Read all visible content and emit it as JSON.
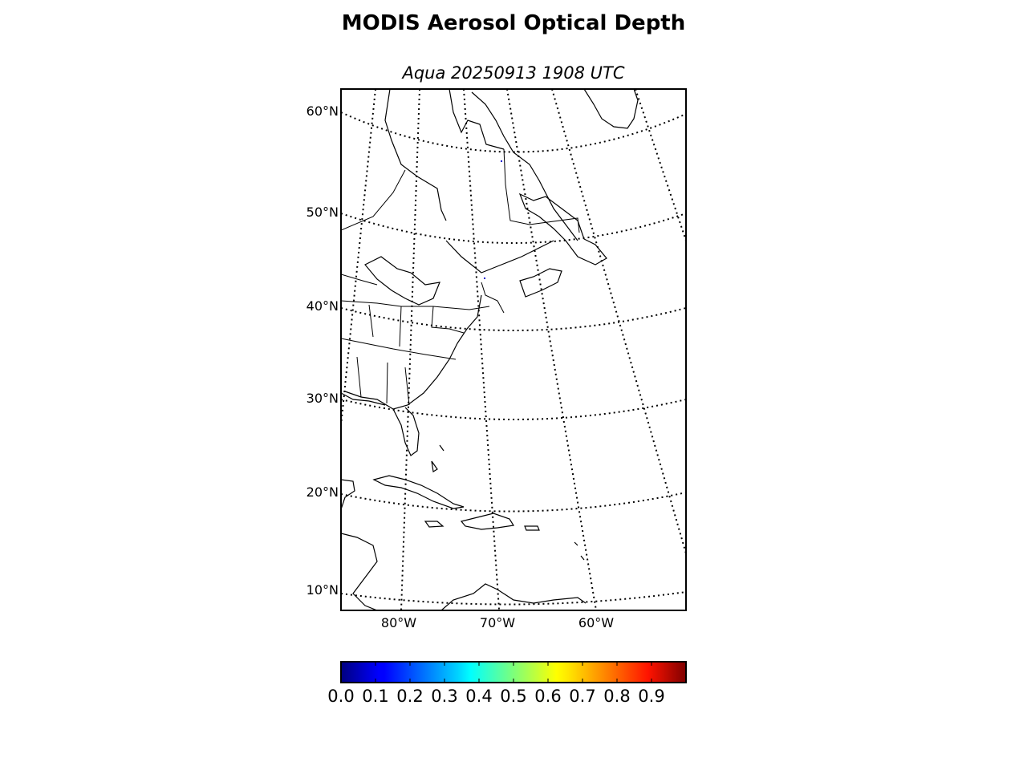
{
  "title": "MODIS Aerosol Optical Depth",
  "subtitle": "Aqua 20250913 1908 UTC",
  "map": {
    "projection": "conic",
    "lat_range": [
      8,
      62
    ],
    "lon_range": [
      -86,
      -51
    ],
    "parallels": [
      10,
      20,
      30,
      40,
      50,
      60
    ],
    "meridians": [
      -80,
      -70,
      -60
    ],
    "lat_labels": [
      "60°N",
      "50°N",
      "40°N",
      "30°N",
      "20°N",
      "10°N"
    ],
    "lon_labels": [
      "80°W",
      "70°W",
      "60°W"
    ],
    "gridline_style": "dotted",
    "data_pixels": "sparse (mostly empty)"
  },
  "colorbar": {
    "colormap": "jet",
    "min": 0.0,
    "max": 1.0,
    "tick_labels": [
      "0.0",
      "0.1",
      "0.2",
      "0.3",
      "0.4",
      "0.5",
      "0.6",
      "0.7",
      "0.8",
      "0.9"
    ]
  }
}
